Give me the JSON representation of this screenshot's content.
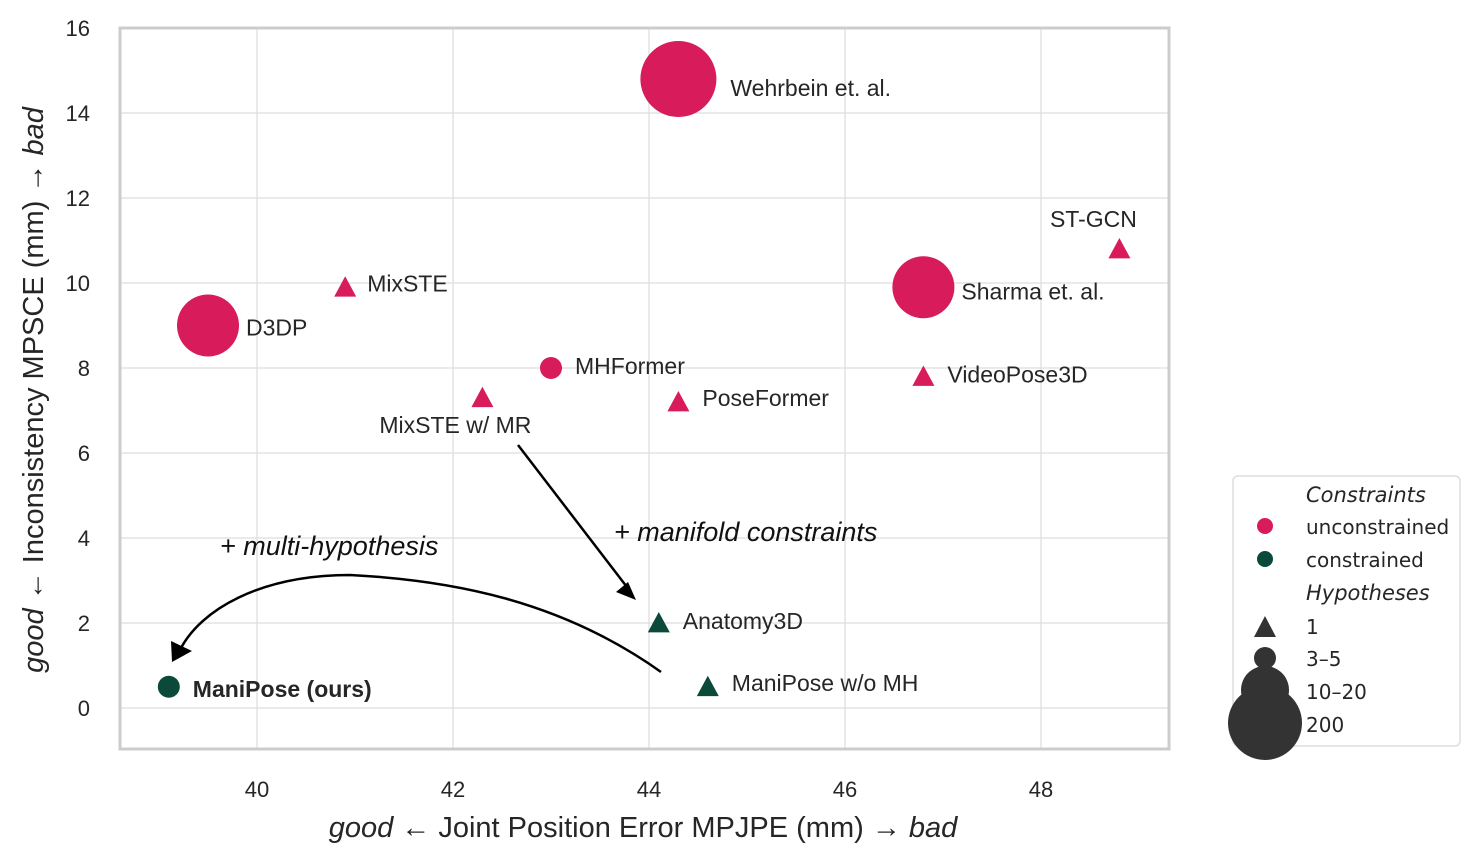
{
  "chart_data": {
    "type": "scatter",
    "xlabel": {
      "left": "good",
      "arrow_left": "←",
      "main": "Joint Position Error MPJPE (mm)",
      "arrow_right": "→",
      "right": "bad"
    },
    "ylabel": {
      "left": "good",
      "arrow_left": "←",
      "main": "Inconsistency MPSCE (mm)",
      "arrow_right": "→",
      "right": "bad"
    },
    "xlim": [
      38.6,
      49.3
    ],
    "ylim": [
      -1,
      16
    ],
    "x_ticks": [
      "40",
      "42",
      "44",
      "46",
      "48"
    ],
    "y_ticks": [
      "0",
      "2",
      "4",
      "6",
      "8",
      "10",
      "12",
      "14",
      "16"
    ],
    "grid": true,
    "colors": {
      "unconstrained": "#d81b5a",
      "constrained": "#0b4a3b",
      "legend_marker": "#333333",
      "grid": "#dddddd",
      "frame": "#cccccc"
    },
    "points": [
      {
        "label": "Wehrbein et. al.",
        "x": 44.3,
        "y": 14.8,
        "group": "unconstrained",
        "hyp": "200",
        "bold": false
      },
      {
        "label": "ST-GCN",
        "x": 48.8,
        "y": 10.8,
        "group": "unconstrained",
        "hyp": "1",
        "bold": false
      },
      {
        "label": "Sharma et. al.",
        "x": 46.8,
        "y": 9.9,
        "group": "unconstrained",
        "hyp": "10–20",
        "bold": false
      },
      {
        "label": "MixSTE",
        "x": 40.9,
        "y": 9.9,
        "group": "unconstrained",
        "hyp": "1",
        "bold": false
      },
      {
        "label": "D3DP",
        "x": 39.5,
        "y": 9.0,
        "group": "unconstrained",
        "hyp": "10–20",
        "bold": false
      },
      {
        "label": "MHFormer",
        "x": 43.0,
        "y": 8.0,
        "group": "unconstrained",
        "hyp": "3–5",
        "bold": false
      },
      {
        "label": "VideoPose3D",
        "x": 46.8,
        "y": 7.8,
        "group": "unconstrained",
        "hyp": "1",
        "bold": false
      },
      {
        "label": "PoseFormer",
        "x": 44.3,
        "y": 7.2,
        "group": "unconstrained",
        "hyp": "1",
        "bold": false
      },
      {
        "label": "MixSTE w/ MR",
        "x": 42.3,
        "y": 7.3,
        "group": "unconstrained",
        "hyp": "1",
        "bold": false
      },
      {
        "label": "Anatomy3D",
        "x": 44.1,
        "y": 2.0,
        "group": "constrained",
        "hyp": "1",
        "bold": false
      },
      {
        "label": "ManiPose w/o MH",
        "x": 44.6,
        "y": 0.5,
        "group": "constrained",
        "hyp": "1",
        "bold": false
      },
      {
        "label": "ManiPose (ours)",
        "x": 39.1,
        "y": 0.5,
        "group": "constrained",
        "hyp": "3–5",
        "bold": true
      }
    ],
    "annotations": [
      {
        "text": "+ manifold constraints"
      },
      {
        "text": "+ multi-hypothesis"
      }
    ],
    "legend": {
      "placement": "outside-lower-right",
      "constraints_title": "Constraints",
      "constraints": [
        "unconstrained",
        "constrained"
      ],
      "hypotheses_title": "Hypotheses",
      "hypotheses": [
        "1",
        "3–5",
        "10–20",
        "200"
      ]
    }
  }
}
